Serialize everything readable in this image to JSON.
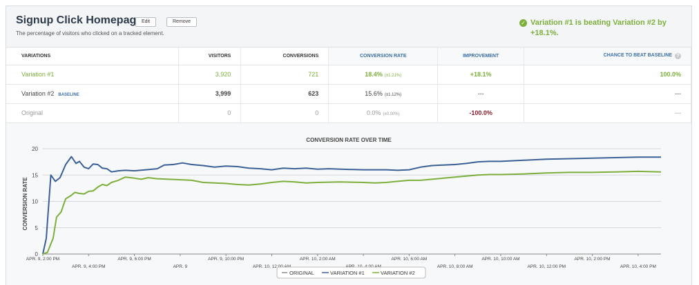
{
  "header": {
    "title": "Signup Click Homepage",
    "edit_label": "Edit",
    "remove_label": "Remove",
    "subtitle": "The percentage of visitors who clicked on a tracked element.",
    "winner_line1": "Variation #1 is beating Variation #2 by",
    "winner_line2": "+18.1%."
  },
  "table": {
    "headers": {
      "variations": "VARIATIONS",
      "visitors": "VISITORS",
      "conversions": "CONVERSIONS",
      "conversion_rate": "CONVERSION RATE",
      "improvement": "IMPROVEMENT",
      "chance": "CHANCE TO BEAT BASELINE"
    },
    "rows": [
      {
        "name": "Variation #1",
        "visitors": "3,920",
        "conversions": "721",
        "rate": "18.4%",
        "rate_ci": "(±1.21%)",
        "improvement": "+18.1%",
        "chance": "100.0%"
      },
      {
        "name": "Variation #2",
        "tag": "BASELINE",
        "visitors": "3,999",
        "conversions": "623",
        "rate": "15.6%",
        "rate_ci": "(±1.12%)",
        "improvement": "---",
        "chance": "---"
      },
      {
        "name": "Original",
        "visitors": "0",
        "conversions": "0",
        "rate": "0.0%",
        "rate_ci": "(±0.00%)",
        "improvement": "-100.0%",
        "chance": "---"
      }
    ]
  },
  "colors": {
    "green": "#7cae3b",
    "blue": "#3a5f96",
    "gray": "#888888"
  },
  "chart_data": {
    "type": "line",
    "title": "CONVERSION RATE OVER TIME",
    "ylabel": "CONVERSION RATE",
    "xlabel": "",
    "ylim": [
      0,
      20
    ],
    "yticks": [
      0,
      5,
      10,
      15,
      20
    ],
    "xlim": [
      0,
      27
    ],
    "x_labels": [
      {
        "t": 0,
        "label": "APR. 9, 2:00 PM",
        "row": 1
      },
      {
        "t": 2,
        "label": "APR. 9, 4:00 PM",
        "row": 2
      },
      {
        "t": 4,
        "label": "APR. 9, 6:00 PM",
        "row": 1
      },
      {
        "t": 6,
        "label": "APR. 9",
        "row": 2
      },
      {
        "t": 8,
        "label": "APR. 9, 10:00 PM",
        "row": 1
      },
      {
        "t": 10,
        "label": "APR. 10, 12:00 AM",
        "row": 2
      },
      {
        "t": 12,
        "label": "APR. 10, 2:00 AM",
        "row": 1
      },
      {
        "t": 14,
        "label": "APR. 10, 4:00 AM",
        "row": 2
      },
      {
        "t": 16,
        "label": "APR. 10, 6:00 AM",
        "row": 1
      },
      {
        "t": 18,
        "label": "APR. 10, 8:00 AM",
        "row": 2
      },
      {
        "t": 20,
        "label": "APR. 10, 10:00 AM",
        "row": 1
      },
      {
        "t": 22,
        "label": "APR. 10, 12:00 PM",
        "row": 2
      },
      {
        "t": 24,
        "label": "APR. 10, 2:00 PM",
        "row": 1
      },
      {
        "t": 26,
        "label": "APR. 10, 4:00 PM",
        "row": 2
      }
    ],
    "series": [
      {
        "name": "ORIGINAL",
        "color": "#888888",
        "points": []
      },
      {
        "name": "VARIATION #1",
        "color": "#3a5f96",
        "points": [
          [
            0,
            0
          ],
          [
            0.15,
            3
          ],
          [
            0.35,
            15
          ],
          [
            0.55,
            13.8
          ],
          [
            0.75,
            14.5
          ],
          [
            1.0,
            17
          ],
          [
            1.25,
            18.5
          ],
          [
            1.45,
            17.2
          ],
          [
            1.6,
            17.6
          ],
          [
            1.8,
            16.5
          ],
          [
            2.0,
            16.2
          ],
          [
            2.2,
            17.1
          ],
          [
            2.4,
            17
          ],
          [
            2.6,
            16.3
          ],
          [
            2.8,
            16.2
          ],
          [
            3.0,
            15.6
          ],
          [
            3.3,
            15.8
          ],
          [
            3.6,
            15.9
          ],
          [
            4.0,
            15.8
          ],
          [
            4.5,
            16
          ],
          [
            5.0,
            16.2
          ],
          [
            5.3,
            16.9
          ],
          [
            5.7,
            17
          ],
          [
            6.1,
            17.3
          ],
          [
            6.5,
            17
          ],
          [
            7.0,
            16.8
          ],
          [
            7.5,
            16.5
          ],
          [
            8.0,
            16.7
          ],
          [
            8.5,
            16.6
          ],
          [
            9.0,
            16.3
          ],
          [
            9.5,
            16.2
          ],
          [
            10.0,
            16
          ],
          [
            10.5,
            16.3
          ],
          [
            11.0,
            16.2
          ],
          [
            11.5,
            16.3
          ],
          [
            12.0,
            16.1
          ],
          [
            12.5,
            16.2
          ],
          [
            13.0,
            16.1
          ],
          [
            14.0,
            16
          ],
          [
            15.0,
            16
          ],
          [
            15.5,
            15.9
          ],
          [
            16.0,
            16
          ],
          [
            16.5,
            16.5
          ],
          [
            17.0,
            16.8
          ],
          [
            17.5,
            16.9
          ],
          [
            18.0,
            17
          ],
          [
            18.5,
            17.2
          ],
          [
            19.0,
            17.5
          ],
          [
            19.5,
            17.6
          ],
          [
            20.0,
            17.6
          ],
          [
            21.0,
            17.8
          ],
          [
            22.0,
            18
          ],
          [
            23.0,
            18.1
          ],
          [
            24.0,
            18.2
          ],
          [
            25.0,
            18.3
          ],
          [
            26.0,
            18.4
          ],
          [
            27.0,
            18.4
          ]
        ]
      },
      {
        "name": "VARIATION #2",
        "color": "#7cae3b",
        "points": [
          [
            0,
            0
          ],
          [
            0.2,
            0.3
          ],
          [
            0.45,
            3
          ],
          [
            0.6,
            7
          ],
          [
            0.8,
            8
          ],
          [
            1.0,
            10.5
          ],
          [
            1.2,
            11
          ],
          [
            1.4,
            11.7
          ],
          [
            1.6,
            11.5
          ],
          [
            1.8,
            11.4
          ],
          [
            2.0,
            11.9
          ],
          [
            2.2,
            12
          ],
          [
            2.4,
            12.7
          ],
          [
            2.6,
            13.2
          ],
          [
            2.8,
            13
          ],
          [
            3.0,
            13.6
          ],
          [
            3.3,
            14
          ],
          [
            3.6,
            14.6
          ],
          [
            4.0,
            14.4
          ],
          [
            4.3,
            14.2
          ],
          [
            4.6,
            14.5
          ],
          [
            5.0,
            14.3
          ],
          [
            5.5,
            14.2
          ],
          [
            6.0,
            14.1
          ],
          [
            6.5,
            14
          ],
          [
            7.0,
            13.6
          ],
          [
            7.5,
            13.5
          ],
          [
            8.0,
            13.4
          ],
          [
            8.5,
            13.2
          ],
          [
            9.0,
            13.1
          ],
          [
            9.5,
            13.3
          ],
          [
            10.0,
            13.6
          ],
          [
            10.5,
            13.8
          ],
          [
            11.0,
            13.7
          ],
          [
            11.5,
            13.5
          ],
          [
            12.0,
            13.6
          ],
          [
            13.0,
            13.7
          ],
          [
            14.0,
            13.6
          ],
          [
            14.5,
            13.5
          ],
          [
            15.0,
            13.6
          ],
          [
            15.5,
            13.8
          ],
          [
            16.0,
            14
          ],
          [
            16.5,
            14
          ],
          [
            17.0,
            14.2
          ],
          [
            17.5,
            14.4
          ],
          [
            18.0,
            14.6
          ],
          [
            18.5,
            14.8
          ],
          [
            19.0,
            15
          ],
          [
            19.5,
            15.1
          ],
          [
            20.0,
            15.1
          ],
          [
            21.0,
            15.2
          ],
          [
            22.0,
            15.4
          ],
          [
            23.0,
            15.5
          ],
          [
            24.0,
            15.5
          ],
          [
            25.0,
            15.6
          ],
          [
            26.0,
            15.7
          ],
          [
            27.0,
            15.6
          ]
        ]
      }
    ],
    "legend": [
      "ORIGINAL",
      "VARIATION #1",
      "VARIATION #2"
    ],
    "legend_position": "bottom-center"
  }
}
